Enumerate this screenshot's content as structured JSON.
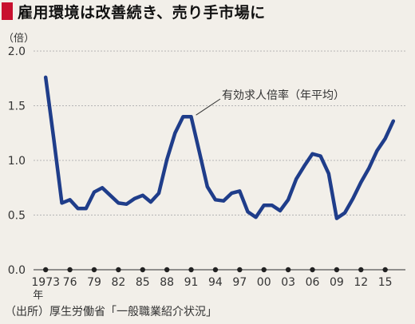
{
  "header": {
    "title": "雇用環境は改善続き、売り手市場に"
  },
  "source": "（出所）厚生労働省「一般職業紹介状況」",
  "chart_data": {
    "type": "line",
    "unit_label": "（倍）",
    "x_unit_label": "年",
    "ylim": [
      0,
      2.0
    ],
    "yticks": [
      "2.0",
      "1.5",
      "1.0",
      "0.5",
      "0.0"
    ],
    "ytick_values": [
      2.0,
      1.5,
      1.0,
      0.5,
      0.0
    ],
    "xlim": [
      1973,
      2016
    ],
    "xtick_labels": [
      "1973",
      "76",
      "79",
      "82",
      "85",
      "88",
      "91",
      "94",
      "97",
      "00",
      "03",
      "06",
      "09",
      "12",
      "15"
    ],
    "xtick_values": [
      1973,
      1976,
      1979,
      1982,
      1985,
      1988,
      1991,
      1994,
      1997,
      2000,
      2003,
      2006,
      2009,
      2012,
      2015
    ],
    "grid": "horizontal-dashed",
    "series": [
      {
        "name": "有効求人倍率（年平均）",
        "color": "#1f3d8a",
        "x": [
          1973,
          1974,
          1975,
          1976,
          1977,
          1978,
          1979,
          1980,
          1981,
          1982,
          1983,
          1984,
          1985,
          1986,
          1987,
          1988,
          1989,
          1990,
          1991,
          1992,
          1993,
          1994,
          1995,
          1996,
          1997,
          1998,
          1999,
          2000,
          2001,
          2002,
          2003,
          2004,
          2005,
          2006,
          2007,
          2008,
          2009,
          2010,
          2011,
          2012,
          2013,
          2014,
          2015,
          2016
        ],
        "values": [
          1.76,
          1.2,
          0.61,
          0.64,
          0.56,
          0.56,
          0.71,
          0.75,
          0.68,
          0.61,
          0.6,
          0.65,
          0.68,
          0.62,
          0.7,
          1.01,
          1.25,
          1.4,
          1.4,
          1.08,
          0.76,
          0.64,
          0.63,
          0.7,
          0.72,
          0.53,
          0.48,
          0.59,
          0.59,
          0.54,
          0.64,
          0.83,
          0.95,
          1.06,
          1.04,
          0.88,
          0.47,
          0.52,
          0.65,
          0.8,
          0.93,
          1.09,
          1.2,
          1.36
        ]
      }
    ],
    "annotation": "有効求人倍率（年平均）"
  }
}
